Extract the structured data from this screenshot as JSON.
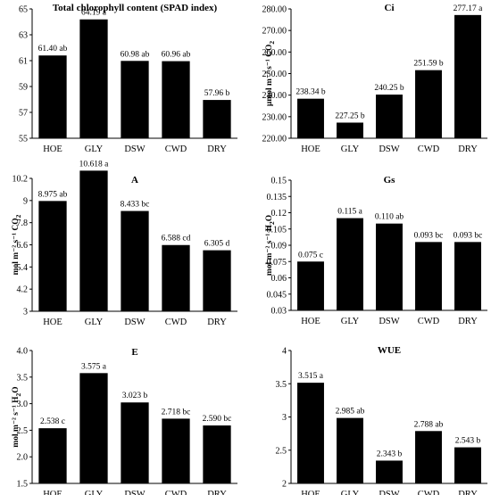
{
  "chart_data": [
    {
      "type": "bar",
      "title": "Total chlorophyll content (SPAD index)",
      "ylabel": "",
      "ylabel_sub": "",
      "categories": [
        "HOE",
        "GLY",
        "DSW",
        "CWD",
        "DRY"
      ],
      "values": [
        61.4,
        64.19,
        60.98,
        60.96,
        57.96
      ],
      "data_labels": [
        "61.40 ab",
        "64.19 a",
        "60.98 ab",
        "60.96 ab",
        "57.96 b"
      ],
      "ylim": [
        55,
        65
      ],
      "yticks": [
        "55",
        "57",
        "59",
        "61",
        "63",
        "65"
      ],
      "bar_color": "#000000"
    },
    {
      "type": "bar",
      "title": "Ci",
      "ylabel": "µmol m⁻² s⁻¹ CO",
      "ylabel_sub": "2",
      "categories": [
        "HOE",
        "GLY",
        "DSW",
        "CWD",
        "DRY"
      ],
      "values": [
        238.34,
        227.25,
        240.25,
        251.59,
        277.17
      ],
      "data_labels": [
        "238.34 b",
        "227.25 b",
        "240.25 b",
        "251.59 b",
        "277.17 a"
      ],
      "ylim": [
        220,
        280
      ],
      "yticks": [
        "220.00",
        "230.00",
        "240.00",
        "250.00",
        "260.00",
        "270.00",
        "280.00"
      ],
      "bar_color": "#000000"
    },
    {
      "type": "bar",
      "title": "A",
      "ylabel": "mol m⁻² s⁻¹ CO",
      "ylabel_sub": "2",
      "categories": [
        "HOE",
        "GLY",
        "DSW",
        "CWD",
        "DRY"
      ],
      "values": [
        8.975,
        10.618,
        8.433,
        6.588,
        6.305
      ],
      "data_labels": [
        "8.975 ab",
        "10.618 a",
        "8.433 bc",
        "6.588 cd",
        "6.305 d"
      ],
      "ylim": [
        3,
        10.2
      ],
      "yticks": [
        "3",
        "4.2",
        "5.4",
        "6.6",
        "7.8",
        "9",
        "10.2"
      ],
      "bar_color": "#000000"
    },
    {
      "type": "bar",
      "title": "Gs",
      "ylabel": "mol m⁻² s⁻¹ H",
      "ylabel_sub": "2",
      "ylabel_tail": "O",
      "categories": [
        "HOE",
        "GLY",
        "DSW",
        "CWD",
        "DRY"
      ],
      "values": [
        0.075,
        0.115,
        0.11,
        0.093,
        0.093
      ],
      "data_labels": [
        "0.075 c",
        "0.115 a",
        "0.110 ab",
        "0.093 bc",
        "0.093 bc"
      ],
      "ylim": [
        0.03,
        0.15
      ],
      "yticks": [
        "0.03",
        "0.045",
        "0.06",
        "0.075",
        "0.09",
        "0.105",
        "0.12",
        "0.135",
        "0.15"
      ],
      "bar_color": "#000000"
    },
    {
      "type": "bar",
      "title": "E",
      "ylabel": "mol m⁻² s⁻¹ H",
      "ylabel_sub": "2",
      "ylabel_tail": "O",
      "categories": [
        "HOE",
        "GLY",
        "DSW",
        "CWD",
        "DRY"
      ],
      "values": [
        2.538,
        3.575,
        3.023,
        2.718,
        2.59
      ],
      "data_labels": [
        "2.538 c",
        "3.575 a",
        "3.023 b",
        "2.718 bc",
        "2.590 bc"
      ],
      "ylim": [
        1.5,
        4.0
      ],
      "yticks": [
        "1.5",
        "2",
        "2.5",
        "3",
        "3.5",
        "4"
      ],
      "ytick_text": [
        "1.5",
        "2.0",
        "2.5",
        "3.0",
        "3.5",
        "4.0"
      ],
      "bar_color": "#000000"
    },
    {
      "type": "bar",
      "title": "WUE",
      "ylabel": "",
      "ylabel_sub": "",
      "categories": [
        "HOE",
        "GLY",
        "DSW",
        "CWD",
        "DRY"
      ],
      "values": [
        3.515,
        2.985,
        2.343,
        2.788,
        2.543
      ],
      "data_labels": [
        "3.515 a",
        "2.985 ab",
        "2.343 b",
        "2.788 ab",
        "2.543 b"
      ],
      "ylim": [
        2,
        4
      ],
      "yticks": [
        "2",
        "2.5",
        "3",
        "3.5",
        "4"
      ],
      "bar_color": "#000000"
    }
  ]
}
